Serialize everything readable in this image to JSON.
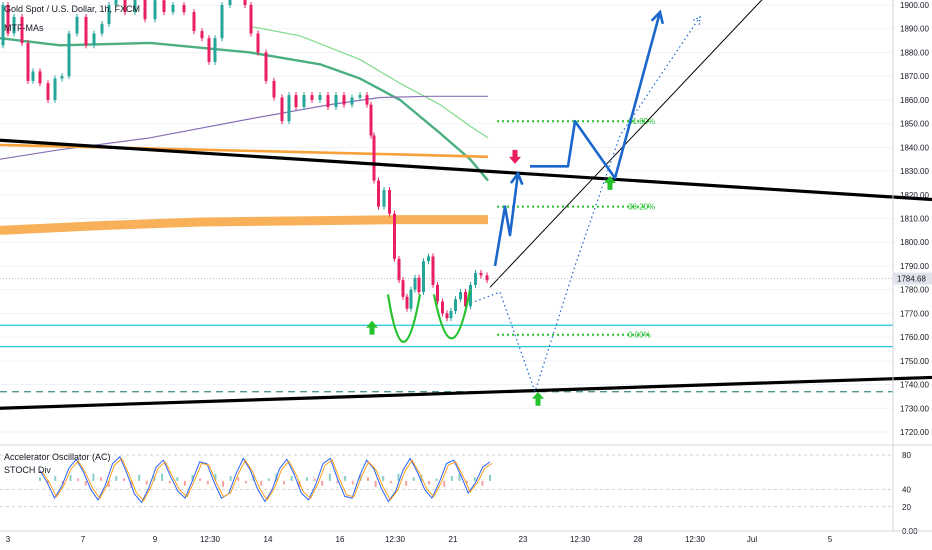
{
  "chart_data": {
    "type": "candlestick",
    "symbol_title": "Gold Spot / U.S. Dollar, 1h, FXCM",
    "indicator_label": "MTF-MAs",
    "price_axis": {
      "range": [
        1717,
        1903
      ],
      "ticks": [
        "1900.00",
        "1890.00",
        "1880.00",
        "1870.00",
        "1860.00",
        "1850.00",
        "1840.00",
        "1830.00",
        "1820.00",
        "1810.00",
        "1800.00",
        "1790.00",
        "1780.00",
        "1770.00",
        "1760.00",
        "1750.00",
        "1740.00",
        "1730.00",
        "1720.00"
      ],
      "last_price": "1784.68"
    },
    "time_axis": {
      "ticks": [
        "3",
        "7",
        "9",
        "12:30",
        "14",
        "16",
        "12:30",
        "21",
        "23",
        "12:30",
        "28",
        "12:30",
        "Jul",
        "5"
      ]
    },
    "price_series_path": [
      [
        0,
        1883
      ],
      [
        6,
        1900
      ],
      [
        10,
        1888
      ],
      [
        18,
        1895
      ],
      [
        26,
        1884
      ],
      [
        30,
        1868
      ],
      [
        36,
        1872
      ],
      [
        44,
        1867
      ],
      [
        52,
        1860
      ],
      [
        58,
        1869
      ],
      [
        66,
        1870
      ],
      [
        72,
        1888
      ],
      [
        82,
        1895
      ],
      [
        90,
        1883
      ],
      [
        98,
        1888
      ],
      [
        106,
        1892
      ],
      [
        112,
        1900
      ],
      [
        120,
        1905
      ],
      [
        130,
        1897
      ],
      [
        140,
        1904
      ],
      [
        150,
        1894
      ],
      [
        160,
        1902
      ],
      [
        168,
        1897
      ],
      [
        178,
        1900
      ],
      [
        190,
        1897
      ],
      [
        198,
        1889
      ],
      [
        206,
        1886
      ],
      [
        212,
        1876
      ],
      [
        218,
        1886
      ],
      [
        226,
        1900
      ],
      [
        234,
        1904
      ],
      [
        242,
        1906
      ],
      [
        248,
        1900
      ],
      [
        254,
        1888
      ],
      [
        262,
        1880
      ],
      [
        270,
        1868
      ],
      [
        278,
        1861
      ],
      [
        286,
        1851
      ],
      [
        292,
        1862
      ],
      [
        300,
        1857
      ],
      [
        308,
        1862
      ],
      [
        316,
        1860
      ],
      [
        324,
        1862
      ],
      [
        332,
        1857
      ],
      [
        340,
        1862
      ],
      [
        348,
        1858
      ],
      [
        356,
        1861
      ],
      [
        364,
        1862
      ],
      [
        370,
        1858
      ],
      [
        372,
        1845
      ],
      [
        376,
        1826
      ],
      [
        381,
        1815
      ],
      [
        387,
        1822
      ],
      [
        392,
        1812
      ],
      [
        397,
        1793
      ],
      [
        401,
        1784
      ],
      [
        405,
        1777
      ],
      [
        409,
        1772
      ],
      [
        413,
        1780
      ],
      [
        417,
        1785
      ],
      [
        421,
        1779
      ],
      [
        426,
        1792
      ],
      [
        431,
        1794
      ],
      [
        435,
        1782
      ],
      [
        440,
        1775
      ],
      [
        445,
        1770
      ],
      [
        449,
        1768
      ],
      [
        453,
        1771
      ],
      [
        458,
        1776
      ],
      [
        463,
        1779
      ],
      [
        468,
        1773
      ],
      [
        473,
        1782
      ],
      [
        478,
        1787
      ],
      [
        484,
        1786
      ],
      [
        490,
        1784
      ]
    ],
    "moving_averages": [
      {
        "color": "#4caf80",
        "points": [
          [
            0,
            1886
          ],
          [
            60,
            1883
          ],
          [
            150,
            1884
          ],
          [
            250,
            1880
          ],
          [
            320,
            1875
          ],
          [
            360,
            1869
          ],
          [
            400,
            1860
          ],
          [
            440,
            1846
          ],
          [
            470,
            1835
          ],
          [
            488,
            1826
          ]
        ]
      },
      {
        "color": "#7fdb8a",
        "points": [
          [
            250,
            1891
          ],
          [
            300,
            1887
          ],
          [
            360,
            1877
          ],
          [
            400,
            1867
          ],
          [
            440,
            1858
          ],
          [
            470,
            1849
          ],
          [
            488,
            1844
          ]
        ]
      },
      {
        "color": "#8a70b8",
        "points": [
          [
            0,
            1835
          ],
          [
            60,
            1839
          ],
          [
            150,
            1844
          ],
          [
            250,
            1852
          ],
          [
            330,
            1858
          ],
          [
            380,
            1861
          ],
          [
            430,
            1861.5
          ],
          [
            488,
            1861.5
          ]
        ]
      },
      {
        "color": "#f7a13a",
        "points": [
          [
            0,
            1841
          ],
          [
            100,
            1840
          ],
          [
            200,
            1839
          ],
          [
            300,
            1838
          ],
          [
            400,
            1837
          ],
          [
            488,
            1836
          ]
        ]
      },
      {
        "color": "#f8a33c",
        "points": [
          [
            0,
            1805
          ],
          [
            100,
            1807
          ],
          [
            200,
            1808.5
          ],
          [
            300,
            1809
          ],
          [
            400,
            1809.5
          ],
          [
            488,
            1809.5
          ]
        ]
      }
    ],
    "trendlines": [
      {
        "color": "#000000",
        "width": 3.2,
        "from": [
          0,
          1843
        ],
        "to": [
          932,
          1818
        ]
      },
      {
        "color": "#000000",
        "width": 3.2,
        "from": [
          0,
          1730
        ],
        "to": [
          932,
          1743
        ]
      },
      {
        "color": "#000000",
        "width": 1,
        "from": [
          490,
          1781
        ],
        "to": [
          775,
          1908
        ]
      }
    ],
    "horizontal_levels": [
      {
        "price": 1765,
        "color": "#26c6da",
        "style": "solid"
      },
      {
        "price": 1756,
        "color": "#26c6da",
        "style": "solid"
      },
      {
        "price": 1737,
        "color": "#4a9a8c",
        "style": "dashed"
      }
    ],
    "fibonacci": [
      {
        "price": 1851,
        "label": "61.80%"
      },
      {
        "price": 1815,
        "label": "38.20%"
      },
      {
        "price": 1761,
        "label": "0.00%"
      }
    ],
    "projections": [
      {
        "color": "#1a66cc",
        "style": "solid",
        "points": [
          [
            495,
            1790
          ],
          [
            505,
            1815
          ],
          [
            510,
            1803
          ],
          [
            518,
            1829
          ]
        ]
      },
      {
        "color": "#1a66cc",
        "style": "solid",
        "points": [
          [
            530,
            1832
          ],
          [
            568,
            1832
          ],
          [
            575,
            1851
          ],
          [
            615,
            1827
          ],
          [
            660,
            1897
          ]
        ]
      },
      {
        "color": "#1a66cc",
        "style": "dotted",
        "points": [
          [
            475,
            1775
          ],
          [
            500,
            1779
          ],
          [
            535,
            1737
          ],
          [
            575,
            1790
          ],
          [
            620,
            1845
          ],
          [
            700,
            1895
          ]
        ]
      }
    ],
    "arrows": [
      {
        "x": 372,
        "price": 1764,
        "dir": "up",
        "color": "#25c22e"
      },
      {
        "x": 610,
        "price": 1825,
        "dir": "up",
        "color": "#25c22e"
      },
      {
        "x": 538,
        "price": 1734,
        "dir": "up",
        "color": "#25c22e"
      },
      {
        "x": 515,
        "price": 1836,
        "dir": "down",
        "color": "#e91e5a"
      }
    ],
    "cup_curves": {
      "color": "#25c22e"
    },
    "ac_axis": {
      "range": [
        -10,
        92
      ],
      "ticks": [
        "80",
        "40",
        "20",
        "0.00"
      ]
    },
    "ac_series": [
      3,
      -2,
      4,
      -3,
      5,
      2,
      -4,
      6,
      3,
      -5,
      4,
      2,
      -6,
      5,
      -3,
      4,
      6,
      -2,
      3,
      -4,
      5,
      2,
      -3,
      6,
      -5,
      4,
      3,
      -2,
      5,
      -4,
      2,
      6,
      -3,
      4,
      -5,
      3,
      2,
      -4,
      6,
      -2,
      4,
      -3,
      5,
      3,
      -5,
      4,
      -2,
      6,
      -4,
      3,
      5,
      -3,
      2,
      -5,
      4,
      6,
      -2,
      3,
      -4,
      5
    ],
    "stoch_series": [
      62,
      48,
      30,
      44,
      65,
      75,
      60,
      40,
      28,
      45,
      70,
      78,
      58,
      35,
      25,
      42,
      66,
      74,
      55,
      38,
      30,
      50,
      72,
      70,
      48,
      30,
      35,
      58,
      76,
      62,
      40,
      26,
      40,
      64,
      75,
      58,
      36,
      28,
      46,
      70,
      76,
      52,
      32,
      30,
      55,
      74,
      64,
      42,
      26,
      38,
      62,
      76,
      60,
      40,
      30,
      48,
      70,
      74,
      56,
      36,
      48,
      66,
      72
    ]
  }
}
